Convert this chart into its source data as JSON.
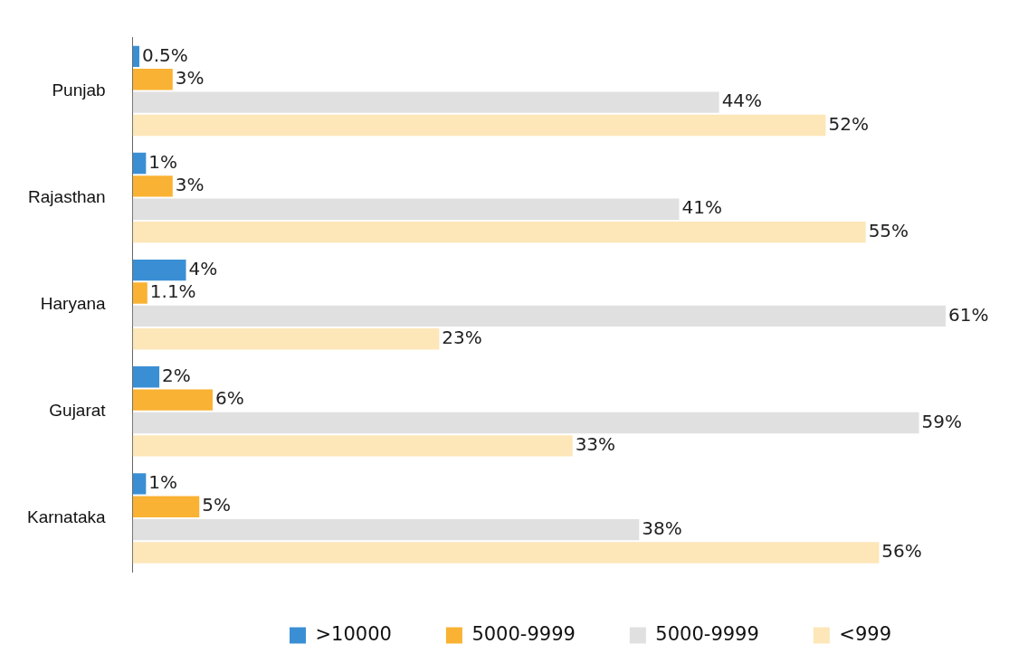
{
  "chart_data": {
    "type": "bar",
    "orientation": "horizontal",
    "categories": [
      "Punjab",
      "Rajasthan",
      "Haryana",
      "Gujarat",
      "Karnataka"
    ],
    "series": [
      {
        "name": ">10000",
        "color": "#3a8fd4",
        "values": [
          0.5,
          1,
          4,
          2,
          1
        ],
        "value_labels": [
          "0.5%",
          "1%",
          "4%",
          "2%",
          "1%"
        ]
      },
      {
        "name": "5000-9999",
        "color": "#f9b233",
        "values": [
          3,
          3,
          1.1,
          6,
          5
        ],
        "value_labels": [
          "3%",
          "3%",
          "1.1%",
          "6%",
          "5%"
        ]
      },
      {
        "name": "5000-9999",
        "color": "#e1e0e1",
        "values": [
          44,
          41,
          61,
          59,
          38
        ],
        "value_labels": [
          "44%",
          "41%",
          "61%",
          "59%",
          "38%"
        ]
      },
      {
        "name": "<999",
        "color": "#fde6b8",
        "values": [
          52,
          55,
          23,
          33,
          56
        ],
        "value_labels": [
          "52%",
          "55%",
          "23%",
          "33%",
          "56%"
        ]
      }
    ],
    "xlim": [
      0,
      61
    ],
    "tick_labels": "y",
    "legend": "bottom"
  }
}
